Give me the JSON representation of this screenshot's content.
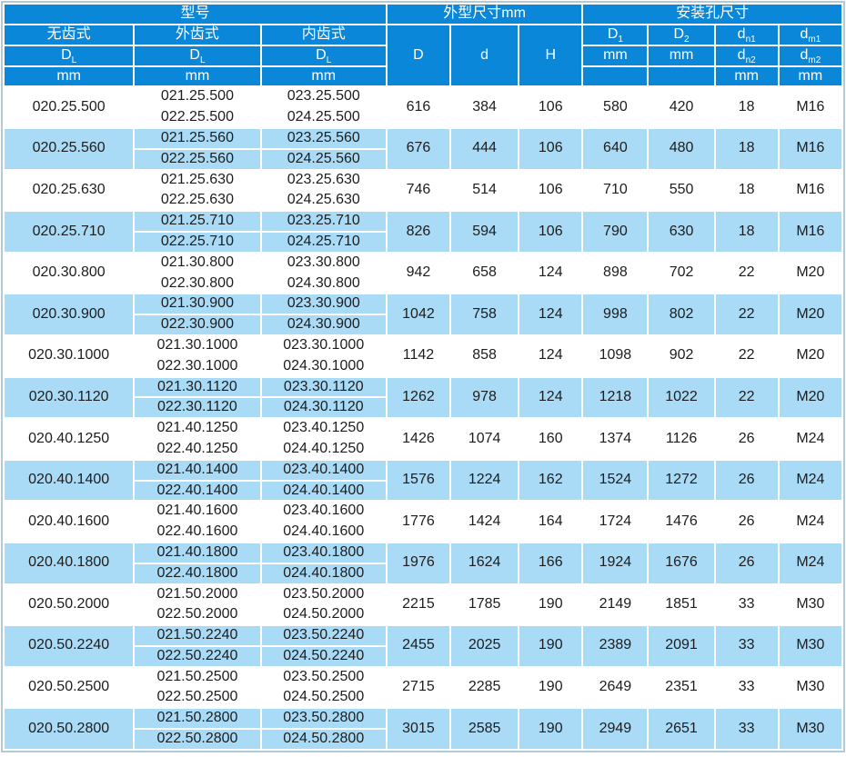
{
  "colors": {
    "header_bg": "#0a87d9",
    "header_text": "#ffffff",
    "row_bg": "#ffffff",
    "row_alt_bg": "#a9daf6",
    "grid_line": "#ffffff",
    "outer_border": "#afcbdb",
    "body_text": "#1d1d1d"
  },
  "table": {
    "header": {
      "group_model": "型号",
      "group_outline": "外型尺寸mm",
      "group_mounting": "安装孔尺寸",
      "col_toothless": "无齿式",
      "col_external_gear": "外齿式",
      "col_internal_gear": "内齿式",
      "dl_base": "D",
      "dl_sub": "L",
      "mm": "mm",
      "col_D": "D",
      "col_d": "d",
      "col_H": "H",
      "D1_base": "D",
      "D1_sub": "1",
      "D2_base": "D",
      "D2_sub": "2",
      "dn1_base": "d",
      "dn1_sub": "n1",
      "dn2_base": "d",
      "dn2_sub": "n2",
      "dm1_base": "d",
      "dm1_sub": "m1",
      "dm2_base": "d",
      "dm2_sub": "m2"
    },
    "rows": [
      {
        "plain": "020.25.500",
        "external": [
          "021.25.500",
          "022.25.500"
        ],
        "internal": [
          "023.25.500",
          "024.25.500"
        ],
        "D": "616",
        "d": "384",
        "H": "106",
        "D1": "580",
        "D2": "420",
        "dn": "18",
        "dm": "M16"
      },
      {
        "plain": "020.25.560",
        "external": [
          "021.25.560",
          "022.25.560"
        ],
        "internal": [
          "023.25.560",
          "024.25.560"
        ],
        "D": "676",
        "d": "444",
        "H": "106",
        "D1": "640",
        "D2": "480",
        "dn": "18",
        "dm": "M16"
      },
      {
        "plain": "020.25.630",
        "external": [
          "021.25.630",
          "022.25.630"
        ],
        "internal": [
          "023.25.630",
          "024.25.630"
        ],
        "D": "746",
        "d": "514",
        "H": "106",
        "D1": "710",
        "D2": "550",
        "dn": "18",
        "dm": "M16"
      },
      {
        "plain": "020.25.710",
        "external": [
          "021.25.710",
          "022.25.710"
        ],
        "internal": [
          "023.25.710",
          "024.25.710"
        ],
        "D": "826",
        "d": "594",
        "H": "106",
        "D1": "790",
        "D2": "630",
        "dn": "18",
        "dm": "M16"
      },
      {
        "plain": "020.30.800",
        "external": [
          "021.30.800",
          "022.30.800"
        ],
        "internal": [
          "023.30.800",
          "024.30.800"
        ],
        "D": "942",
        "d": "658",
        "H": "124",
        "D1": "898",
        "D2": "702",
        "dn": "22",
        "dm": "M20"
      },
      {
        "plain": "020.30.900",
        "external": [
          "021.30.900",
          "022.30.900"
        ],
        "internal": [
          "023.30.900",
          "024.30.900"
        ],
        "D": "1042",
        "d": "758",
        "H": "124",
        "D1": "998",
        "D2": "802",
        "dn": "22",
        "dm": "M20"
      },
      {
        "plain": "020.30.1000",
        "external": [
          "021.30.1000",
          "022.30.1000"
        ],
        "internal": [
          "023.30.1000",
          "024.30.1000"
        ],
        "D": "1142",
        "d": "858",
        "H": "124",
        "D1": "1098",
        "D2": "902",
        "dn": "22",
        "dm": "M20"
      },
      {
        "plain": "020.30.1120",
        "external": [
          "021.30.1120",
          "022.30.1120"
        ],
        "internal": [
          "023.30.1120",
          "024.30.1120"
        ],
        "D": "1262",
        "d": "978",
        "H": "124",
        "D1": "1218",
        "D2": "1022",
        "dn": "22",
        "dm": "M20"
      },
      {
        "plain": "020.40.1250",
        "external": [
          "021.40.1250",
          "022.40.1250"
        ],
        "internal": [
          "023.40.1250",
          "024.40.1250"
        ],
        "D": "1426",
        "d": "1074",
        "H": "160",
        "D1": "1374",
        "D2": "1126",
        "dn": "26",
        "dm": "M24"
      },
      {
        "plain": "020.40.1400",
        "external": [
          "021.40.1400",
          "022.40.1400"
        ],
        "internal": [
          "023.40.1400",
          "024.40.1400"
        ],
        "D": "1576",
        "d": "1224",
        "H": "162",
        "D1": "1524",
        "D2": "1272",
        "dn": "26",
        "dm": "M24"
      },
      {
        "plain": "020.40.1600",
        "external": [
          "021.40.1600",
          "022.40.1600"
        ],
        "internal": [
          "023.40.1600",
          "024.40.1600"
        ],
        "D": "1776",
        "d": "1424",
        "H": "164",
        "D1": "1724",
        "D2": "1476",
        "dn": "26",
        "dm": "M24"
      },
      {
        "plain": "020.40.1800",
        "external": [
          "021.40.1800",
          "022.40.1800"
        ],
        "internal": [
          "023.40.1800",
          "024.40.1800"
        ],
        "D": "1976",
        "d": "1624",
        "H": "166",
        "D1": "1924",
        "D2": "1676",
        "dn": "26",
        "dm": "M24"
      },
      {
        "plain": "020.50.2000",
        "external": [
          "021.50.2000",
          "022.50.2000"
        ],
        "internal": [
          "023.50.2000",
          "024.50.2000"
        ],
        "D": "2215",
        "d": "1785",
        "H": "190",
        "D1": "2149",
        "D2": "1851",
        "dn": "33",
        "dm": "M30"
      },
      {
        "plain": "020.50.2240",
        "external": [
          "021.50.2240",
          "022.50.2240"
        ],
        "internal": [
          "023.50.2240",
          "024.50.2240"
        ],
        "D": "2455",
        "d": "2025",
        "H": "190",
        "D1": "2389",
        "D2": "2091",
        "dn": "33",
        "dm": "M30"
      },
      {
        "plain": "020.50.2500",
        "external": [
          "021.50.2500",
          "022.50.2500"
        ],
        "internal": [
          "023.50.2500",
          "024.50.2500"
        ],
        "D": "2715",
        "d": "2285",
        "H": "190",
        "D1": "2649",
        "D2": "2351",
        "dn": "33",
        "dm": "M30"
      },
      {
        "plain": "020.50.2800",
        "external": [
          "021.50.2800",
          "022.50.2800"
        ],
        "internal": [
          "023.50.2800",
          "024.50.2800"
        ],
        "D": "3015",
        "d": "2585",
        "H": "190",
        "D1": "2949",
        "D2": "2651",
        "dn": "33",
        "dm": "M30"
      }
    ]
  }
}
